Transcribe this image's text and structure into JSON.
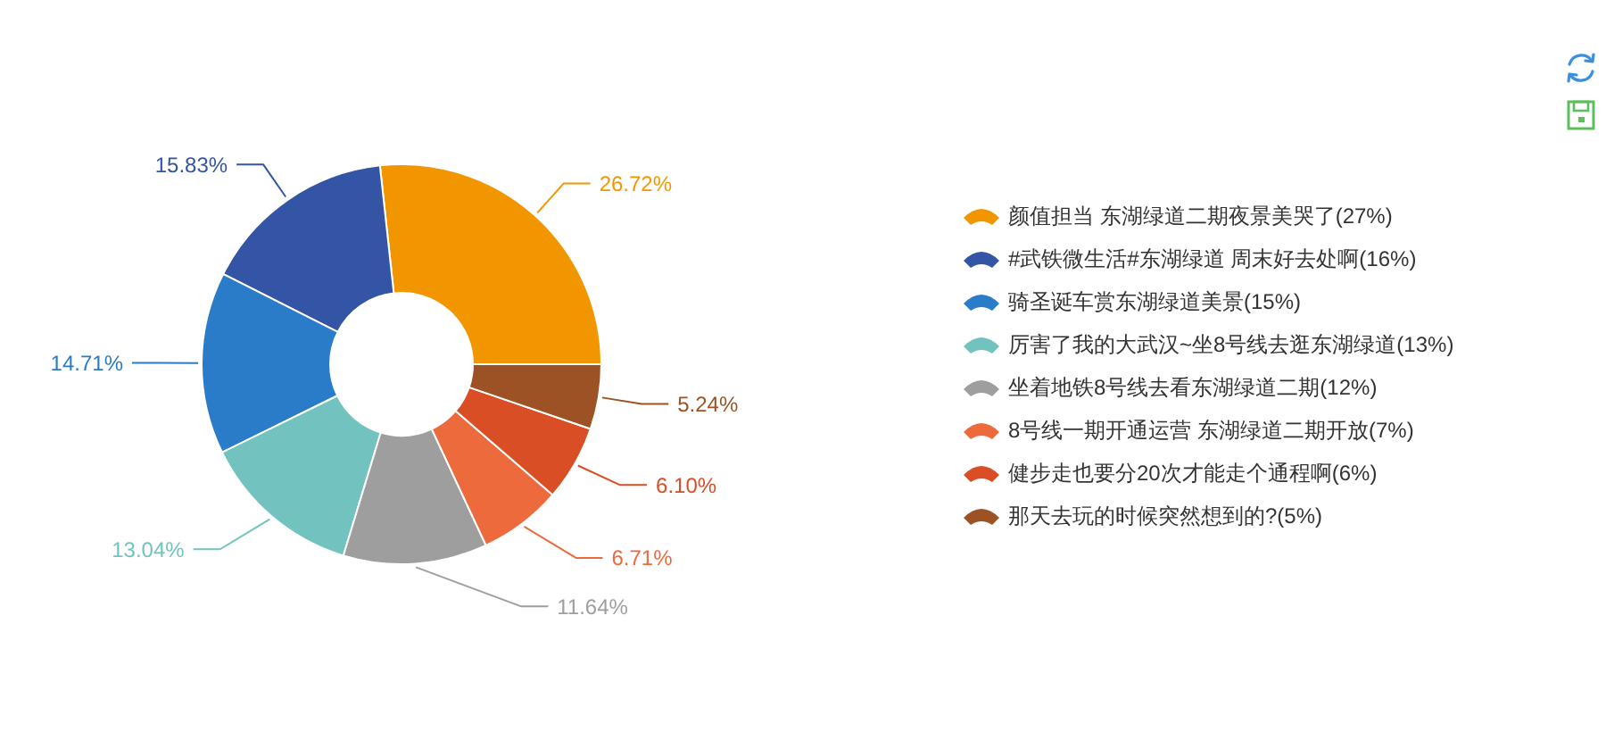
{
  "chart_data": {
    "type": "donut",
    "categories": [
      "颜值担当 东湖绿道二期夜景美哭了(27%)",
      "#武铁微生活#东湖绿道 周末好去处啊(16%)",
      "骑圣诞车赏东湖绿道美景(15%)",
      "厉害了我的大武汉~坐8号线去逛东湖绿道(13%)",
      "坐着地铁8号线去看东湖绿道二期(12%)",
      "8号线一期开通运营 东湖绿道二期开放(7%)",
      "健步走也要分20次才能走个通程啊(6%)",
      "那天去玩的时候突然想到的?(5%)"
    ],
    "values": [
      26.72,
      15.83,
      14.71,
      13.04,
      11.64,
      6.71,
      6.1,
      5.24
    ],
    "colors": [
      "#f29600",
      "#3454a5",
      "#2a7bc8",
      "#72c3bf",
      "#9e9e9e",
      "#ec6a3b",
      "#d94e24",
      "#9c5225"
    ],
    "value_labels": [
      "26.72%",
      "15.83%",
      "14.71%",
      "13.04%",
      "11.64%",
      "6.71%",
      "6.10%",
      "5.24%"
    ],
    "legend": "right"
  }
}
